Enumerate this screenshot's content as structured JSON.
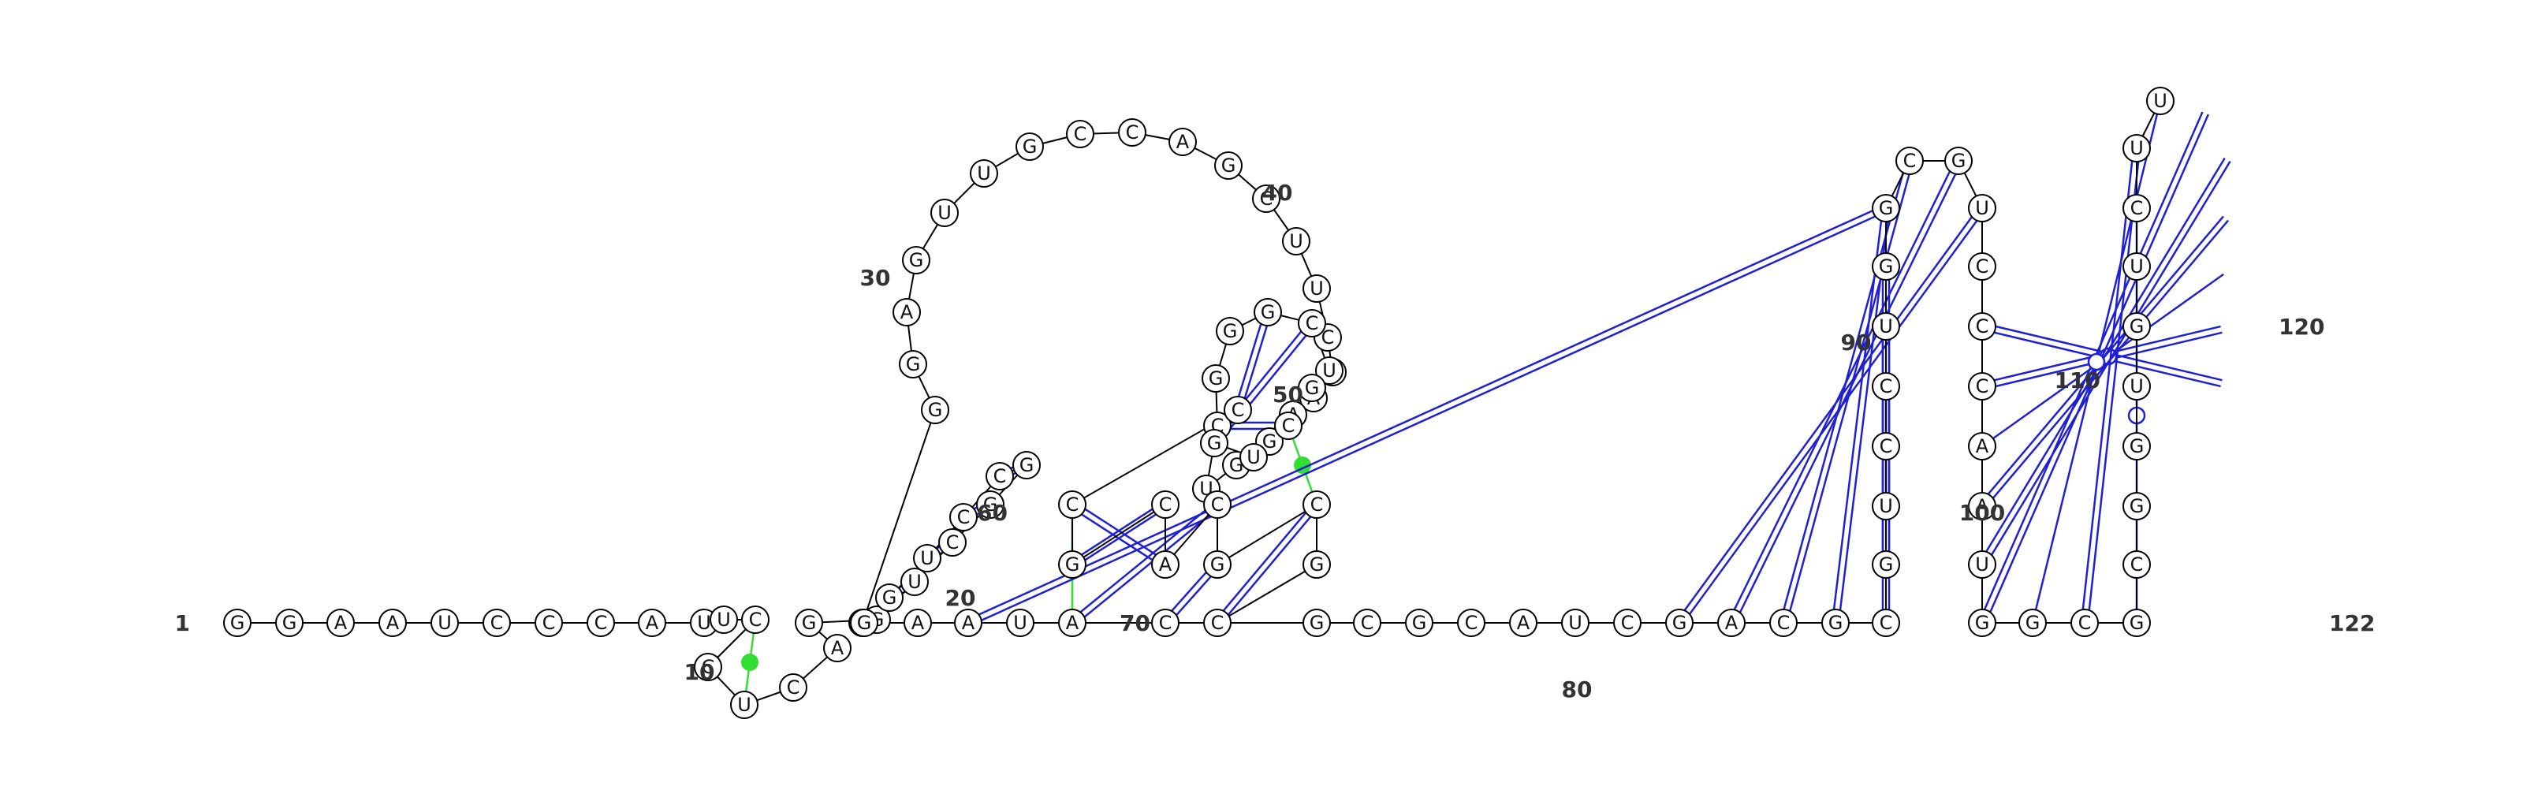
{
  "diagram": {
    "type": "rna-secondary-structure",
    "sequence": "GGAAUCCCAUUCCUCAGGUCGGCCUGGGGAGUUGCCAGCUUCCAAGGUCGGGCUGCUGCCGCACGCGCCAUAAGGCGCAUCGACGCGUCCUGGCGUCCCAAUGGCGCGGUGUCUU",
    "numbering_labels": [
      {
        "n": 1,
        "text": "1"
      },
      {
        "n": 10,
        "text": "10"
      },
      {
        "n": 20,
        "text": "20"
      },
      {
        "n": 30,
        "text": "30"
      },
      {
        "n": 40,
        "text": "40"
      },
      {
        "n": 50,
        "text": "50"
      },
      {
        "n": 60,
        "text": "60"
      },
      {
        "n": 70,
        "text": "70"
      },
      {
        "n": 80,
        "text": "80"
      },
      {
        "n": 90,
        "text": "90"
      },
      {
        "n": 100,
        "text": "100"
      },
      {
        "n": 110,
        "text": "110"
      },
      {
        "n": 120,
        "text": "120"
      },
      {
        "n": 122,
        "text": "122"
      }
    ],
    "base_pairs": [
      {
        "i": 18,
        "j": 27,
        "type": "canonical"
      },
      {
        "i": 19,
        "j": 26,
        "type": "canonical"
      },
      {
        "i": 20,
        "j": 25,
        "type": "canonical"
      },
      {
        "i": 21,
        "j": 24,
        "type": "canonical"
      },
      {
        "i": 22,
        "j": 23,
        "type": "canonical"
      },
      {
        "i": 49,
        "j": 56,
        "type": "canonical"
      },
      {
        "i": 52,
        "j": 59,
        "type": "canonical"
      },
      {
        "i": 53,
        "j": 58,
        "type": "canonical"
      },
      {
        "i": 54,
        "j": 57,
        "type": "canonical"
      },
      {
        "i": 60,
        "j": 63,
        "type": "canonical"
      },
      {
        "i": 61,
        "j": 62,
        "type": "canonical"
      },
      {
        "i": 64,
        "j": 70,
        "type": "canonical"
      },
      {
        "i": 65,
        "j": 69,
        "type": "canonical"
      },
      {
        "i": 66,
        "j": 68,
        "type": "canonical"
      },
      {
        "i": 72,
        "j": 93,
        "type": "canonical"
      },
      {
        "i": 82,
        "j": 96,
        "type": "canonical"
      },
      {
        "i": 83,
        "j": 95,
        "type": "canonical"
      },
      {
        "i": 84,
        "j": 94,
        "type": "canonical"
      },
      {
        "i": 85,
        "j": 93,
        "type": "canonical"
      },
      {
        "i": 86,
        "j": 92,
        "type": "canonical"
      },
      {
        "i": 87,
        "j": 91,
        "type": "canonical"
      },
      {
        "i": 88,
        "j": 90,
        "type": "wobble"
      },
      {
        "i": 98,
        "j": 121,
        "type": "canonical"
      },
      {
        "i": 99,
        "j": 120,
        "type": "canonical"
      },
      {
        "i": 100,
        "j": 119,
        "type": "wobble"
      },
      {
        "i": 101,
        "j": 118,
        "type": "canonical"
      },
      {
        "i": 102,
        "j": 117,
        "type": "canonical"
      },
      {
        "i": 103,
        "j": 116,
        "type": "canonical"
      },
      {
        "i": 104,
        "j": 115,
        "type": "wobble"
      },
      {
        "i": 105,
        "j": 114,
        "type": "canonical"
      },
      {
        "i": 106,
        "j": 113,
        "type": "wobble"
      }
    ],
    "tertiary_interactions": [
      {
        "i": 12,
        "j": 14
      },
      {
        "i": 56,
        "j": 66
      },
      {
        "i": 60,
        "j": 70
      }
    ],
    "colors": {
      "backbone": "#000000",
      "nucleotide_fill": "#ffffff",
      "canonical_pair": "#1f1fd6",
      "wobble_pair": "#1f1fd6",
      "tertiary": "#33dd33",
      "label": "#333333"
    }
  }
}
